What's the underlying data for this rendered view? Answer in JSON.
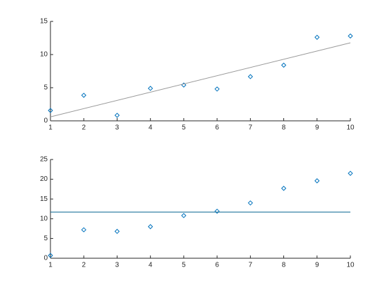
{
  "chart_data": [
    {
      "type": "scatter",
      "xlim": [
        1,
        10
      ],
      "xticks": [
        1,
        2,
        3,
        4,
        5,
        6,
        7,
        8,
        9,
        10
      ],
      "ylim": [
        0,
        15
      ],
      "yticks": [
        0,
        5,
        10,
        15
      ],
      "series": [
        {
          "style": "marker",
          "color": "#0072bd",
          "x": [
            1,
            2,
            3,
            4,
            5,
            6,
            7,
            8,
            9,
            10
          ],
          "values": [
            1.56,
            3.85,
            0.83,
            4.9,
            5.4,
            4.8,
            6.67,
            8.4,
            12.6,
            12.8
          ]
        },
        {
          "style": "line",
          "color": "#999999",
          "x": [
            1,
            10
          ],
          "values": [
            0.6,
            11.77
          ]
        }
      ]
    },
    {
      "type": "scatter",
      "xlim": [
        1,
        10
      ],
      "xticks": [
        1,
        2,
        3,
        4,
        5,
        6,
        7,
        8,
        9,
        10
      ],
      "ylim": [
        0,
        25
      ],
      "yticks": [
        0,
        5,
        10,
        15,
        20,
        25
      ],
      "series": [
        {
          "style": "marker",
          "color": "#0072bd",
          "x": [
            1,
            2,
            3,
            4,
            5,
            6,
            7,
            8,
            9,
            10
          ],
          "values": [
            0.7,
            7.2,
            6.8,
            8.0,
            10.8,
            11.9,
            14.0,
            17.7,
            19.6,
            21.5
          ]
        },
        {
          "style": "line",
          "color": "#00628f",
          "x": [
            1,
            10
          ],
          "values": [
            11.7,
            11.7
          ]
        }
      ]
    }
  ]
}
